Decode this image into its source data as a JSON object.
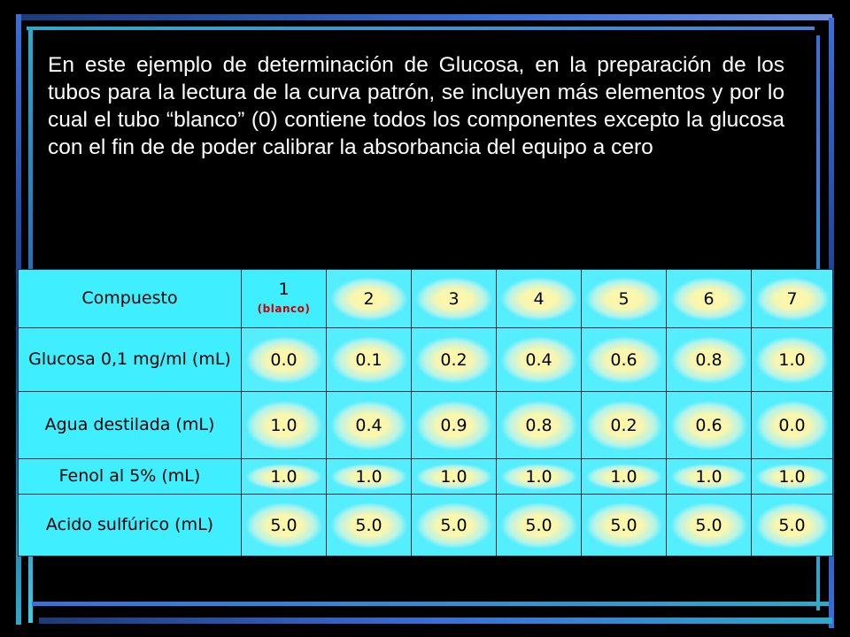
{
  "paragraph": "En este ejemplo de determinación de Glucosa, en la preparación de los tubos para la lectura de la curva patrón, se incluyen más elementos y por lo cual el tubo “blanco” (0) contiene todos los componentes excepto la glucosa con el fin de de poder calibrar la absorbancia del equipo a cero",
  "table": {
    "header": {
      "label": "Compuesto",
      "tube1": "1",
      "tube1_note": "(blanco)",
      "tubes": [
        "2",
        "3",
        "4",
        "5",
        "6",
        "7"
      ]
    },
    "rows": [
      {
        "label": "Glucosa 0,1 mg/ml (mL)",
        "values": [
          "0.0",
          "0.1",
          "0.2",
          "0.4",
          "0.6",
          "0.8",
          "1.0"
        ]
      },
      {
        "label": "Agua destilada (mL)",
        "values": [
          "1.0",
          "0.4",
          "0.9",
          "0.8",
          "0.2",
          "0.6",
          "0.0"
        ]
      },
      {
        "label": "Fenol al 5% (mL)",
        "values": [
          "1.0",
          "1.0",
          "1.0",
          "1.0",
          "1.0",
          "1.0",
          "1.0"
        ]
      },
      {
        "label": "Acido sulfúrico (mL)",
        "values": [
          "5.0",
          "5.0",
          "5.0",
          "5.0",
          "5.0",
          "5.0",
          "5.0"
        ]
      }
    ]
  },
  "colors": {
    "background": "#000000",
    "cell_cyan": "#3fefff",
    "cell_glow": "#fff9a6",
    "frame_blue": "#3a6fd8",
    "frame_cyan": "#2fa9c9",
    "note_red": "#cc0000"
  }
}
